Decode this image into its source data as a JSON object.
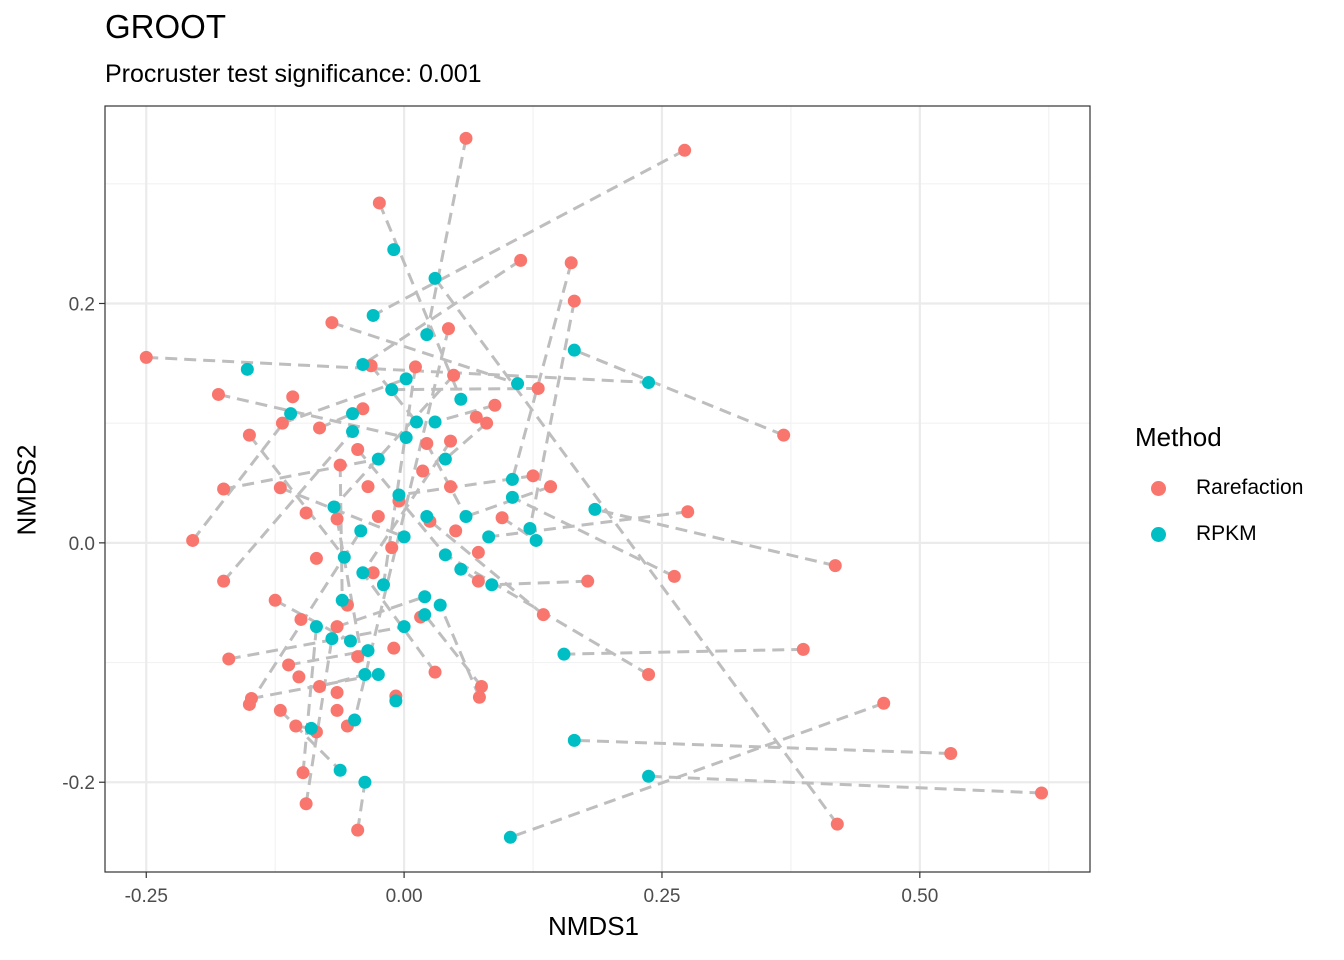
{
  "chart_data": {
    "type": "scatter",
    "title": "GROOT",
    "subtitle": "Procruster test significance: 0.001",
    "xlabel": "NMDS1",
    "ylabel": "NMDS2",
    "xlim": [
      -0.29,
      0.665
    ],
    "ylim": [
      -0.275,
      0.365
    ],
    "xticks": [
      -0.25,
      0.0,
      0.25,
      0.5
    ],
    "xtick_labels": [
      "-0.25",
      "0.00",
      "0.25",
      "0.50"
    ],
    "yticks": [
      -0.2,
      0.0,
      0.2
    ],
    "ytick_labels": [
      "-0.2",
      "0.0",
      "0.2"
    ],
    "grid": true,
    "legend": {
      "title": "Method",
      "position": "right"
    },
    "connector_color": "#BEBEBE",
    "series": [
      {
        "name": "Rarefaction",
        "color": "#F8766D",
        "points": [
          [
            0.06,
            0.338
          ],
          [
            0.272,
            0.328
          ],
          [
            -0.024,
            0.284
          ],
          [
            0.113,
            0.236
          ],
          [
            0.162,
            0.234
          ],
          [
            0.165,
            0.202
          ],
          [
            -0.07,
            0.184
          ],
          [
            0.043,
            0.179
          ],
          [
            -0.25,
            0.155
          ],
          [
            -0.18,
            0.124
          ],
          [
            -0.108,
            0.122
          ],
          [
            -0.032,
            0.148
          ],
          [
            0.011,
            0.147
          ],
          [
            0.048,
            0.14
          ],
          [
            0.13,
            0.129
          ],
          [
            0.088,
            0.115
          ],
          [
            -0.04,
            0.112
          ],
          [
            0.07,
            0.105
          ],
          [
            -0.118,
            0.1
          ],
          [
            -0.082,
            0.096
          ],
          [
            0.08,
            0.1
          ],
          [
            -0.15,
            0.09
          ],
          [
            0.045,
            0.085
          ],
          [
            0.368,
            0.09
          ],
          [
            -0.045,
            0.078
          ],
          [
            0.022,
            0.083
          ],
          [
            -0.062,
            0.065
          ],
          [
            0.018,
            0.06
          ],
          [
            0.125,
            0.056
          ],
          [
            -0.175,
            0.045
          ],
          [
            -0.12,
            0.046
          ],
          [
            -0.035,
            0.047
          ],
          [
            0.045,
            0.047
          ],
          [
            0.142,
            0.047
          ],
          [
            -0.005,
            0.035
          ],
          [
            -0.095,
            0.025
          ],
          [
            -0.065,
            0.02
          ],
          [
            0.275,
            0.026
          ],
          [
            0.095,
            0.021
          ],
          [
            -0.025,
            0.022
          ],
          [
            0.025,
            0.018
          ],
          [
            -0.205,
            0.002
          ],
          [
            0.05,
            0.01
          ],
          [
            -0.012,
            -0.004
          ],
          [
            -0.085,
            -0.013
          ],
          [
            0.072,
            -0.008
          ],
          [
            -0.175,
            -0.032
          ],
          [
            0.262,
            -0.028
          ],
          [
            0.418,
            -0.019
          ],
          [
            -0.03,
            -0.025
          ],
          [
            0.072,
            -0.032
          ],
          [
            0.178,
            -0.032
          ],
          [
            -0.125,
            -0.048
          ],
          [
            -0.055,
            -0.052
          ],
          [
            0.016,
            -0.062
          ],
          [
            0.135,
            -0.06
          ],
          [
            -0.1,
            -0.064
          ],
          [
            -0.065,
            -0.07
          ],
          [
            -0.17,
            -0.097
          ],
          [
            -0.01,
            -0.088
          ],
          [
            0.387,
            -0.089
          ],
          [
            -0.112,
            -0.102
          ],
          [
            -0.045,
            -0.095
          ],
          [
            0.03,
            -0.108
          ],
          [
            0.237,
            -0.11
          ],
          [
            -0.102,
            -0.112
          ],
          [
            -0.082,
            -0.12
          ],
          [
            0.075,
            -0.12
          ],
          [
            0.073,
            -0.129
          ],
          [
            -0.148,
            -0.13
          ],
          [
            -0.065,
            -0.125
          ],
          [
            -0.008,
            -0.128
          ],
          [
            -0.15,
            -0.135
          ],
          [
            0.465,
            -0.134
          ],
          [
            -0.12,
            -0.14
          ],
          [
            -0.065,
            -0.14
          ],
          [
            -0.105,
            -0.153
          ],
          [
            -0.055,
            -0.153
          ],
          [
            -0.085,
            -0.158
          ],
          [
            0.53,
            -0.176
          ],
          [
            -0.098,
            -0.192
          ],
          [
            0.618,
            -0.209
          ],
          [
            0.42,
            -0.235
          ],
          [
            -0.095,
            -0.218
          ],
          [
            -0.045,
            -0.24
          ]
        ]
      },
      {
        "name": "RPKM",
        "color": "#00BFC4",
        "points": [
          [
            -0.01,
            0.245
          ],
          [
            0.03,
            0.221
          ],
          [
            -0.03,
            0.19
          ],
          [
            0.022,
            0.174
          ],
          [
            0.165,
            0.161
          ],
          [
            -0.04,
            0.149
          ],
          [
            -0.152,
            0.145
          ],
          [
            0.237,
            0.134
          ],
          [
            0.11,
            0.133
          ],
          [
            0.002,
            0.137
          ],
          [
            -0.012,
            0.128
          ],
          [
            0.055,
            0.12
          ],
          [
            -0.11,
            0.108
          ],
          [
            -0.05,
            0.108
          ],
          [
            0.012,
            0.101
          ],
          [
            0.03,
            0.101
          ],
          [
            -0.05,
            0.093
          ],
          [
            0.002,
            0.088
          ],
          [
            -0.025,
            0.07
          ],
          [
            0.04,
            0.07
          ],
          [
            0.105,
            0.053
          ],
          [
            0.105,
            0.038
          ],
          [
            -0.005,
            0.04
          ],
          [
            0.185,
            0.028
          ],
          [
            -0.068,
            0.03
          ],
          [
            0.022,
            0.022
          ],
          [
            0.06,
            0.022
          ],
          [
            0.122,
            0.012
          ],
          [
            -0.042,
            0.01
          ],
          [
            0.0,
            0.005
          ],
          [
            0.128,
            0.002
          ],
          [
            0.082,
            0.005
          ],
          [
            0.04,
            -0.01
          ],
          [
            -0.058,
            -0.012
          ],
          [
            0.055,
            -0.022
          ],
          [
            -0.04,
            -0.025
          ],
          [
            0.085,
            -0.035
          ],
          [
            -0.02,
            -0.035
          ],
          [
            0.02,
            -0.045
          ],
          [
            -0.06,
            -0.048
          ],
          [
            0.035,
            -0.052
          ],
          [
            0.02,
            -0.06
          ],
          [
            -0.085,
            -0.07
          ],
          [
            0.0,
            -0.07
          ],
          [
            -0.07,
            -0.08
          ],
          [
            -0.052,
            -0.082
          ],
          [
            0.155,
            -0.093
          ],
          [
            -0.035,
            -0.09
          ],
          [
            -0.038,
            -0.11
          ],
          [
            -0.025,
            -0.11
          ],
          [
            -0.008,
            -0.132
          ],
          [
            -0.048,
            -0.148
          ],
          [
            -0.09,
            -0.155
          ],
          [
            0.165,
            -0.165
          ],
          [
            -0.062,
            -0.19
          ],
          [
            -0.038,
            -0.2
          ],
          [
            0.237,
            -0.195
          ],
          [
            0.103,
            -0.246
          ]
        ]
      }
    ],
    "connectors": [
      [
        [
          0.06,
          0.338
        ],
        [
          0.022,
          0.174
        ]
      ],
      [
        [
          0.272,
          0.328
        ],
        [
          -0.03,
          0.19
        ]
      ],
      [
        [
          -0.024,
          0.284
        ],
        [
          0.055,
          0.12
        ]
      ],
      [
        [
          0.113,
          0.236
        ],
        [
          -0.04,
          0.149
        ]
      ],
      [
        [
          0.162,
          0.234
        ],
        [
          0.105,
          0.053
        ]
      ],
      [
        [
          0.165,
          0.202
        ],
        [
          0.122,
          0.012
        ]
      ],
      [
        [
          -0.07,
          0.184
        ],
        [
          0.11,
          0.133
        ]
      ],
      [
        [
          -0.25,
          0.155
        ],
        [
          0.237,
          0.134
        ]
      ],
      [
        [
          0.368,
          0.09
        ],
        [
          0.165,
          0.161
        ]
      ],
      [
        [
          0.418,
          -0.019
        ],
        [
          0.185,
          0.028
        ]
      ],
      [
        [
          0.387,
          -0.089
        ],
        [
          0.155,
          -0.093
        ]
      ],
      [
        [
          0.53,
          -0.176
        ],
        [
          0.165,
          -0.165
        ]
      ],
      [
        [
          0.618,
          -0.209
        ],
        [
          0.237,
          -0.195
        ]
      ],
      [
        [
          0.465,
          -0.134
        ],
        [
          0.103,
          -0.246
        ]
      ],
      [
        [
          0.42,
          -0.235
        ],
        [
          0.03,
          0.221
        ]
      ],
      [
        [
          0.275,
          0.026
        ],
        [
          0.082,
          0.005
        ]
      ],
      [
        [
          0.262,
          -0.028
        ],
        [
          0.105,
          0.038
        ]
      ],
      [
        [
          0.237,
          -0.11
        ],
        [
          0.04,
          -0.01
        ]
      ],
      [
        [
          0.178,
          -0.032
        ],
        [
          0.085,
          -0.035
        ]
      ],
      [
        [
          0.135,
          -0.06
        ],
        [
          0.02,
          0.022
        ]
      ],
      [
        [
          0.13,
          0.129
        ],
        [
          -0.012,
          0.128
        ]
      ],
      [
        [
          0.142,
          0.047
        ],
        [
          0.06,
          0.022
        ]
      ],
      [
        [
          -0.18,
          0.124
        ],
        [
          0.002,
          0.088
        ]
      ],
      [
        [
          -0.205,
          0.002
        ],
        [
          -0.11,
          0.108
        ]
      ],
      [
        [
          -0.175,
          -0.032
        ],
        [
          -0.05,
          0.093
        ]
      ],
      [
        [
          -0.17,
          -0.097
        ],
        [
          0.0,
          -0.07
        ]
      ],
      [
        [
          -0.15,
          -0.135
        ],
        [
          -0.042,
          0.01
        ]
      ],
      [
        [
          -0.148,
          -0.13
        ],
        [
          -0.025,
          -0.11
        ]
      ],
      [
        [
          -0.175,
          0.045
        ],
        [
          -0.025,
          0.07
        ]
      ],
      [
        [
          -0.15,
          0.09
        ],
        [
          -0.058,
          -0.012
        ]
      ],
      [
        [
          -0.118,
          0.1
        ],
        [
          0.002,
          0.137
        ]
      ],
      [
        [
          -0.12,
          0.046
        ],
        [
          0.0,
          0.005
        ]
      ],
      [
        [
          -0.125,
          -0.048
        ],
        [
          -0.052,
          -0.082
        ]
      ],
      [
        [
          -0.12,
          -0.14
        ],
        [
          -0.062,
          -0.19
        ]
      ],
      [
        [
          -0.098,
          -0.192
        ],
        [
          -0.085,
          -0.07
        ]
      ],
      [
        [
          -0.095,
          -0.218
        ],
        [
          -0.07,
          -0.08
        ]
      ],
      [
        [
          -0.045,
          -0.24
        ],
        [
          -0.038,
          -0.2
        ]
      ],
      [
        [
          -0.105,
          -0.153
        ],
        [
          -0.09,
          -0.155
        ]
      ],
      [
        [
          0.075,
          -0.12
        ],
        [
          0.02,
          -0.06
        ]
      ],
      [
        [
          0.073,
          -0.129
        ],
        [
          0.035,
          -0.052
        ]
      ],
      [
        [
          0.03,
          -0.108
        ],
        [
          -0.04,
          -0.025
        ]
      ],
      [
        [
          -0.008,
          -0.128
        ],
        [
          -0.008,
          -0.132
        ]
      ],
      [
        [
          0.088,
          0.115
        ],
        [
          0.03,
          0.101
        ]
      ],
      [
        [
          0.08,
          0.1
        ],
        [
          0.04,
          0.07
        ]
      ],
      [
        [
          0.072,
          -0.032
        ],
        [
          0.055,
          -0.022
        ]
      ],
      [
        [
          0.048,
          0.14
        ],
        [
          -0.068,
          0.03
        ]
      ],
      [
        [
          0.043,
          0.179
        ],
        [
          -0.048,
          -0.148
        ]
      ],
      [
        [
          0.011,
          0.147
        ],
        [
          -0.02,
          -0.035
        ]
      ],
      [
        [
          -0.032,
          0.148
        ],
        [
          0.012,
          0.101
        ]
      ],
      [
        [
          0.095,
          0.021
        ],
        [
          0.128,
          0.002
        ]
      ],
      [
        [
          0.125,
          0.056
        ],
        [
          -0.005,
          0.04
        ]
      ],
      [
        [
          -0.082,
          0.096
        ],
        [
          -0.05,
          0.108
        ]
      ],
      [
        [
          -0.062,
          0.065
        ],
        [
          -0.06,
          -0.048
        ]
      ],
      [
        [
          -0.065,
          0.02
        ],
        [
          -0.038,
          -0.11
        ]
      ],
      [
        [
          -0.112,
          -0.102
        ],
        [
          -0.035,
          -0.09
        ]
      ],
      [
        [
          -0.082,
          -0.12
        ],
        [
          -0.038,
          -0.11
        ]
      ],
      [
        [
          -0.065,
          -0.07
        ],
        [
          0.02,
          -0.045
        ]
      ],
      [
        [
          -0.045,
          0.078
        ],
        [
          0.04,
          -0.01
        ]
      ],
      [
        [
          0.045,
          0.085
        ],
        [
          -0.04,
          -0.025
        ]
      ],
      [
        [
          0.022,
          0.083
        ],
        [
          0.06,
          0.022
        ]
      ]
    ]
  }
}
